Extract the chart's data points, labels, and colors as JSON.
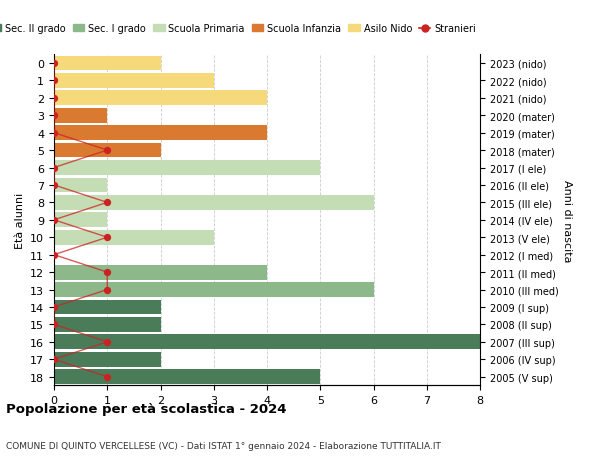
{
  "title": "Popolazione per età scolastica - 2024",
  "subtitle": "COMUNE DI QUINTO VERCELLESE (VC) - Dati ISTAT 1° gennaio 2024 - Elaborazione TUTTITALIA.IT",
  "ylabel_left": "Età alunni",
  "ylabel_right": "Anni di nascita",
  "ages_top_to_bottom": [
    18,
    17,
    16,
    15,
    14,
    13,
    12,
    11,
    10,
    9,
    8,
    7,
    6,
    5,
    4,
    3,
    2,
    1,
    0
  ],
  "right_labels_top_to_bottom": [
    "2005 (V sup)",
    "2006 (IV sup)",
    "2007 (III sup)",
    "2008 (II sup)",
    "2009 (I sup)",
    "2010 (III med)",
    "2011 (II med)",
    "2012 (I med)",
    "2013 (V ele)",
    "2014 (IV ele)",
    "2015 (III ele)",
    "2016 (II ele)",
    "2017 (I ele)",
    "2018 (mater)",
    "2019 (mater)",
    "2020 (mater)",
    "2021 (nido)",
    "2022 (nido)",
    "2023 (nido)"
  ],
  "bar_values_top_to_bottom": [
    5,
    2,
    8,
    2,
    2,
    6,
    4,
    0,
    3,
    1,
    6,
    1,
    5,
    2,
    4,
    1,
    4,
    3,
    2
  ],
  "bar_colors_top_to_bottom": [
    "#4a7c59",
    "#4a7c59",
    "#4a7c59",
    "#4a7c59",
    "#4a7c59",
    "#8cb88a",
    "#8cb88a",
    "#8cb88a",
    "#c5ddb4",
    "#c5ddb4",
    "#c5ddb4",
    "#c5ddb4",
    "#c5ddb4",
    "#d97a30",
    "#d97a30",
    "#d97a30",
    "#f5d97a",
    "#f5d97a",
    "#f5d97a"
  ],
  "stranieri_top_to_bottom": [
    1,
    0,
    1,
    0,
    0,
    1,
    1,
    0,
    1,
    0,
    1,
    0,
    0,
    1,
    0,
    0,
    0,
    0,
    0
  ],
  "stranieri_color": "#cc2222",
  "legend_entries": [
    {
      "label": "Sec. II grado",
      "color": "#4a7c59"
    },
    {
      "label": "Sec. I grado",
      "color": "#8cb88a"
    },
    {
      "label": "Scuola Primaria",
      "color": "#c5ddb4"
    },
    {
      "label": "Scuola Infanzia",
      "color": "#d97a30"
    },
    {
      "label": "Asilo Nido",
      "color": "#f5d97a"
    },
    {
      "label": "Stranieri",
      "color": "#cc2222"
    }
  ],
  "xlim": [
    0,
    8
  ],
  "xticks": [
    0,
    1,
    2,
    3,
    4,
    5,
    6,
    7,
    8
  ],
  "background_color": "#ffffff",
  "grid_color": "#cccccc"
}
